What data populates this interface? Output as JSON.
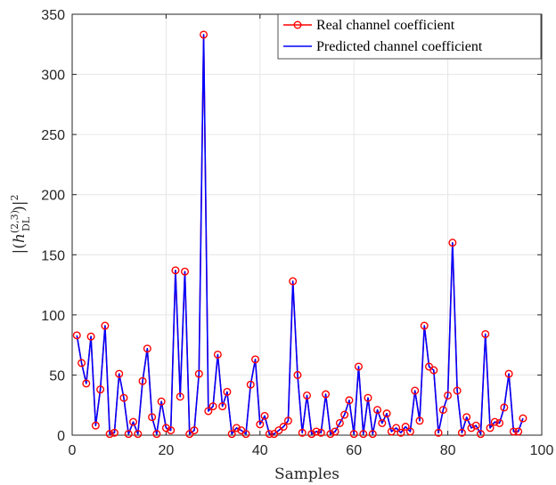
{
  "chart_data": {
    "type": "line",
    "xlabel": "Samples",
    "ylabel_parts": {
      "open": "|(",
      "base": "h",
      "superscript": "(2,3)",
      "subscript": "DL",
      "close": ")|",
      "power": "2"
    },
    "xlim": [
      0,
      100
    ],
    "ylim": [
      0,
      350
    ],
    "xticks": [
      0,
      20,
      40,
      60,
      80,
      100
    ],
    "yticks": [
      0,
      50,
      100,
      150,
      200,
      250,
      300,
      350
    ],
    "grid": true,
    "legend_position": "top-right",
    "x": [
      1,
      2,
      3,
      4,
      5,
      6,
      7,
      8,
      9,
      10,
      11,
      12,
      13,
      14,
      15,
      16,
      17,
      18,
      19,
      20,
      21,
      22,
      23,
      24,
      25,
      26,
      27,
      28,
      29,
      30,
      31,
      32,
      33,
      34,
      35,
      36,
      37,
      38,
      39,
      40,
      41,
      42,
      43,
      44,
      45,
      46,
      47,
      48,
      49,
      50,
      51,
      52,
      53,
      54,
      55,
      56,
      57,
      58,
      59,
      60,
      61,
      62,
      63,
      64,
      65,
      66,
      67,
      68,
      69,
      70,
      71,
      72,
      73,
      74,
      75,
      76,
      77,
      78,
      79,
      80,
      81,
      82,
      83,
      84,
      85,
      86,
      87,
      88,
      89,
      90,
      91,
      92,
      93,
      94,
      95,
      96
    ],
    "series": [
      {
        "name": "Real channel coefficient",
        "color": "#ff0000",
        "style": "line-circle",
        "values": [
          83,
          60,
          43,
          82,
          8,
          38,
          91,
          1,
          2,
          51,
          31,
          1,
          11,
          1,
          45,
          72,
          15,
          1,
          28,
          6,
          4,
          137,
          32,
          136,
          1,
          4,
          51,
          333,
          20,
          24,
          67,
          24,
          36,
          1,
          6,
          4,
          1,
          42,
          63,
          9,
          16,
          1,
          1,
          4,
          7,
          12,
          128,
          50,
          2,
          33,
          1,
          3,
          2,
          34,
          1,
          3,
          10,
          17,
          29,
          1,
          57,
          1,
          31,
          1,
          21,
          10,
          18,
          3,
          6,
          2,
          7,
          3,
          37,
          12,
          91,
          57,
          54,
          2,
          21,
          33,
          160,
          37,
          2,
          15,
          6,
          8,
          1,
          84,
          6,
          11,
          10,
          23,
          51,
          3,
          3,
          14
        ]
      },
      {
        "name": "Predicted channel coefficient",
        "color": "#0000ff",
        "style": "line",
        "values": [
          83,
          60,
          43,
          82,
          8,
          38,
          91,
          1,
          2,
          51,
          31,
          1,
          11,
          1,
          45,
          72,
          15,
          1,
          28,
          6,
          4,
          137,
          32,
          136,
          1,
          4,
          51,
          333,
          20,
          24,
          67,
          24,
          36,
          1,
          6,
          4,
          1,
          42,
          63,
          9,
          16,
          1,
          1,
          4,
          7,
          12,
          128,
          50,
          2,
          33,
          1,
          3,
          2,
          34,
          1,
          3,
          10,
          17,
          29,
          1,
          57,
          1,
          31,
          1,
          21,
          10,
          18,
          3,
          6,
          2,
          7,
          3,
          37,
          12,
          91,
          57,
          54,
          2,
          21,
          33,
          160,
          37,
          2,
          15,
          6,
          8,
          1,
          84,
          6,
          11,
          10,
          23,
          51,
          3,
          3,
          14
        ]
      }
    ]
  }
}
